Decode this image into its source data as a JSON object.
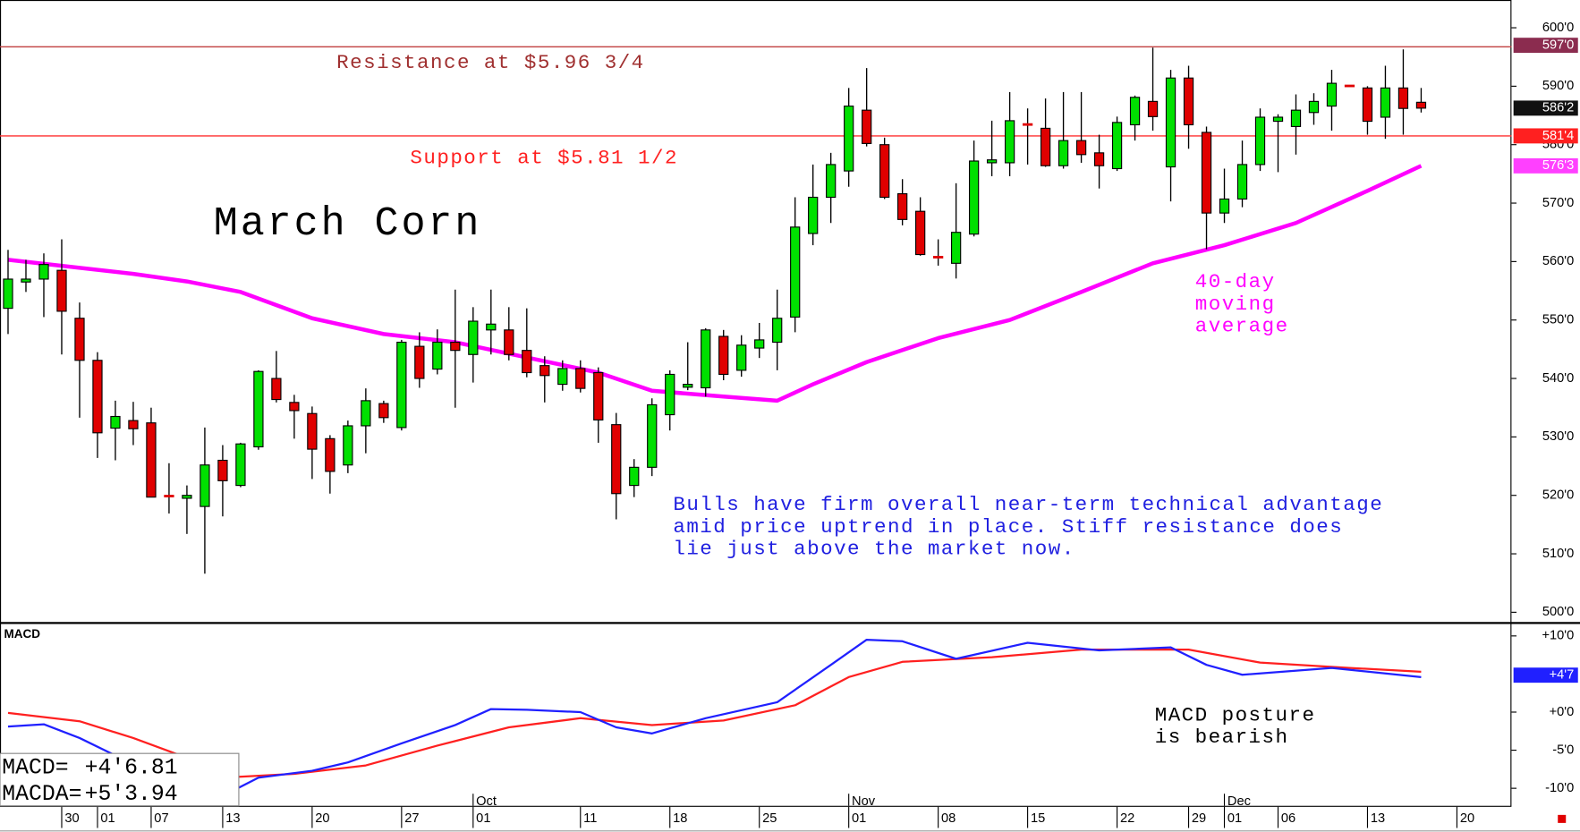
{
  "chart_data": [
    {
      "type": "candlestick",
      "title": "March Corn",
      "open": [
        552,
        556.5,
        557,
        558.5,
        550.3,
        543.1,
        531.5,
        532.8,
        532.4,
        520,
        519.5,
        518.1,
        526,
        521.7,
        528.3,
        540,
        535.9,
        534,
        529.7,
        525.2,
        531.9,
        535.7,
        531.6,
        545.5,
        541.6,
        546.2,
        544.1,
        548.3,
        548.3,
        544.8,
        542.2,
        539,
        541.7,
        541,
        532.1,
        521.7,
        524.8,
        533.8,
        538.5,
        538.4,
        547.2,
        541.4,
        545.2,
        546.2,
        550.5,
        564.8,
        571,
        575.5,
        585.9,
        580,
        571.6,
        568.6,
        560.8,
        559.7,
        564.7,
        576.9,
        576.9,
        583.5,
        582.8,
        576.4,
        580.7,
        578.6,
        575.9,
        583.4,
        587.4,
        576.2,
        591.4,
        582.1,
        568.3,
        570.7,
        576.6,
        584,
        583.1,
        585.5,
        586.6,
        590.1,
        589.7,
        584.7,
        589.7,
        587.25
      ],
      "close": [
        557,
        557,
        559.5,
        551.5,
        543.1,
        530.7,
        533.5,
        531.4,
        519.7,
        519.75,
        520,
        525.2,
        522.5,
        528.8,
        541.2,
        536.4,
        534.5,
        527.9,
        524.1,
        531.9,
        536.2,
        533.3,
        546.2,
        540,
        546.2,
        544.8,
        549.8,
        549.3,
        544.1,
        541,
        540.5,
        541.7,
        538.3,
        532.9,
        520.3,
        524.8,
        535.5,
        540.7,
        539,
        548.3,
        540.7,
        545.7,
        546.6,
        550.3,
        565.9,
        571,
        576.6,
        586.6,
        580.2,
        571,
        567.2,
        561.2,
        560.7,
        565,
        577.2,
        577.4,
        584.1,
        583.4,
        576.4,
        580.7,
        578.3,
        576.4,
        583.8,
        588.1,
        584.8,
        591.4,
        583.4,
        568.3,
        570.7,
        576.6,
        584.7,
        584.7,
        585.9,
        587.4,
        590.5,
        590,
        584,
        589.7,
        586.2,
        586.25
      ],
      "high": [
        562,
        560.3,
        561.4,
        563.8,
        553,
        544.5,
        536.2,
        536,
        535,
        525.5,
        521.7,
        531.6,
        528.6,
        529,
        541.4,
        544.7,
        537.2,
        535.2,
        530.3,
        532.8,
        538.3,
        536.2,
        546.6,
        547.9,
        548.4,
        555.2,
        552.2,
        555.2,
        552.2,
        552,
        543.8,
        543.1,
        543.1,
        541.9,
        534.1,
        526.2,
        536.6,
        541.4,
        546.2,
        548.6,
        548.3,
        547.4,
        549.5,
        555.2,
        571,
        576.6,
        578.6,
        589.7,
        593.1,
        581.2,
        574.1,
        571,
        563.8,
        573.4,
        580.7,
        584.1,
        589,
        586.2,
        587.9,
        589,
        589,
        581.7,
        584.8,
        588.4,
        596.6,
        592.8,
        593.5,
        583.1,
        575.9,
        580.7,
        586.2,
        585.2,
        588.6,
        588.8,
        592.8,
        590.1,
        590,
        593.5,
        596.3,
        589.7
      ],
      "low": [
        547.6,
        554.8,
        550.5,
        544.1,
        533.3,
        526.4,
        526,
        528.6,
        519.7,
        516.9,
        513.4,
        506.6,
        516.4,
        521.4,
        527.8,
        535.9,
        529.7,
        522.8,
        520.3,
        523.8,
        527.2,
        532.4,
        531.1,
        538.4,
        540.7,
        535,
        539.3,
        544.1,
        543.1,
        540.2,
        535.9,
        537.9,
        537.6,
        529,
        515.9,
        519.7,
        523.3,
        531.1,
        538,
        536.9,
        539.7,
        540.3,
        543.5,
        541.4,
        547.9,
        562.8,
        566.6,
        572.8,
        579.7,
        570.7,
        566.2,
        561,
        559.3,
        557.1,
        564.3,
        574.6,
        574.6,
        576.6,
        576.2,
        575.9,
        576.9,
        572.5,
        575.5,
        580.7,
        582.4,
        570.3,
        579.3,
        562.1,
        566.6,
        569.3,
        575.5,
        575.3,
        578.3,
        583.4,
        582.4,
        590,
        581.7,
        581,
        581.7,
        585.5
      ],
      "candle_colors": {
        "up": "#00e000",
        "down": "#e00000"
      },
      "xlim": [
        -0.45,
        84.05
      ],
      "xticks": [
        {
          "value": 3,
          "label": "30"
        },
        {
          "value": 5,
          "label": "01"
        },
        {
          "value": 8,
          "label": "07"
        },
        {
          "value": 12,
          "label": "13"
        },
        {
          "value": 17,
          "label": "20"
        },
        {
          "value": 22,
          "label": "27"
        },
        {
          "value": 26,
          "label": "01"
        },
        {
          "value": 32,
          "label": "11"
        },
        {
          "value": 37,
          "label": "18"
        },
        {
          "value": 42,
          "label": "25"
        },
        {
          "value": 47,
          "label": "01"
        },
        {
          "value": 52,
          "label": "08"
        },
        {
          "value": 57,
          "label": "15"
        },
        {
          "value": 62,
          "label": "22"
        },
        {
          "value": 66,
          "label": "29"
        },
        {
          "value": 68,
          "label": "01"
        },
        {
          "value": 71,
          "label": "06"
        },
        {
          "value": 76,
          "label": "13"
        },
        {
          "value": 81,
          "label": "20"
        }
      ],
      "month_ticks": [
        {
          "value": 26,
          "label": "Oct"
        },
        {
          "value": 47,
          "label": "Nov"
        },
        {
          "value": 68,
          "label": "Dec"
        }
      ],
      "ylim": [
        498.25,
        604.75
      ],
      "yticks": [
        {
          "value": 500,
          "label": "500'0"
        },
        {
          "value": 510,
          "label": "510'0"
        },
        {
          "value": 520,
          "label": "520'0"
        },
        {
          "value": 530,
          "label": "530'0"
        },
        {
          "value": 540,
          "label": "540'0"
        },
        {
          "value": 550,
          "label": "550'0"
        },
        {
          "value": 560,
          "label": "560'0"
        },
        {
          "value": 570,
          "label": "570'0"
        },
        {
          "value": 580,
          "label": "580'0"
        },
        {
          "value": 590,
          "label": "590'0"
        },
        {
          "value": 600,
          "label": "600'0"
        }
      ],
      "moving_average": {
        "color": "#ff00ff",
        "x": [
          0,
          7,
          10,
          13,
          17,
          21,
          25,
          29,
          33,
          36,
          40,
          43,
          45,
          48,
          52,
          56,
          60,
          64,
          68,
          72,
          76,
          79
        ],
        "values": [
          560.3,
          557.9,
          556.6,
          554.8,
          550.3,
          547.6,
          546.2,
          543.6,
          541,
          537.9,
          536.9,
          536.2,
          539,
          542.8,
          546.9,
          550,
          554.8,
          559.7,
          562.8,
          566.6,
          572.1,
          576.375
        ]
      },
      "hlines": [
        {
          "value": 596.75,
          "color": "#c04040"
        },
        {
          "value": 581.5,
          "color": "#ff3030"
        }
      ],
      "price_tags": [
        {
          "value": 597,
          "label": "597'0",
          "color": "#8b2c4f"
        },
        {
          "value": 586.25,
          "label": "586'2",
          "color": "#111111"
        },
        {
          "value": 581.5,
          "label": "581'4",
          "color": "#ff2020"
        },
        {
          "value": 576.375,
          "label": "576'3",
          "color": "#ff40ff"
        }
      ],
      "annotations": [
        {
          "lines": [
            "Resistance at $5.96 3/4"
          ],
          "color": "#a03030"
        },
        {
          "lines": [
            "Support at $5.81 1/2"
          ],
          "color": "#ff2020"
        },
        {
          "lines": [
            "40-day",
            "moving",
            "average"
          ],
          "color": "#ff00ff"
        },
        {
          "lines": [
            "Bulls have firm overall near-term technical advantage",
            "amid price uptrend in place. Stiff resistance does",
            "lie just above the market now."
          ],
          "color": "#2020e0"
        }
      ]
    },
    {
      "type": "line",
      "title": "MACD",
      "series": [
        {
          "name": "MACD=",
          "color": "#2020ff",
          "x": [
            0,
            2,
            4,
            6,
            9,
            12,
            14,
            17,
            19,
            22,
            25,
            27,
            29,
            32,
            34,
            36,
            39,
            43,
            46,
            48,
            50,
            53,
            57,
            61,
            65,
            67,
            69,
            74,
            79
          ],
          "values": [
            -1.9,
            -1.6,
            -3.4,
            -5.7,
            -8.3,
            -11,
            -8.6,
            -7.7,
            -6.6,
            -4.1,
            -1.7,
            0.4,
            0.3,
            0,
            -2,
            -2.8,
            -0.8,
            1.3,
            6.2,
            9.5,
            9.3,
            7,
            9.1,
            8.1,
            8.5,
            6.2,
            4.9,
            5.8,
            4.6
          ],
          "value_label": "+4'6.81"
        },
        {
          "name": "MACDA=",
          "color": "#ff2020",
          "x": [
            0,
            4,
            7,
            10,
            12,
            16,
            20,
            24,
            28,
            32,
            36,
            40,
            44,
            47,
            50,
            55,
            60,
            66,
            70,
            75,
            79
          ],
          "values": [
            -0.1,
            -1.2,
            -3.4,
            -6,
            -8.6,
            -8.1,
            -7,
            -4.4,
            -2,
            -0.8,
            -1.7,
            -1.1,
            0.9,
            4.6,
            6.6,
            7.2,
            8.2,
            8.2,
            6.5,
            5.8,
            5.3
          ],
          "value_label": "+5'3.94"
        }
      ],
      "ylim": [
        -12.3,
        11.5
      ],
      "yticks": [
        {
          "value": 10,
          "label": "+10'0"
        },
        {
          "value": 0,
          "label": "+0'0"
        },
        {
          "value": -5,
          "label": "-5'0"
        },
        {
          "value": -10,
          "label": "-10'0"
        }
      ],
      "price_tags": [
        {
          "value": 4.85,
          "label": "+4'7",
          "color": "#2020ff"
        }
      ],
      "annotations": [
        {
          "lines": [
            "MACD posture",
            "is bearish"
          ],
          "color": "#000000"
        }
      ]
    }
  ]
}
